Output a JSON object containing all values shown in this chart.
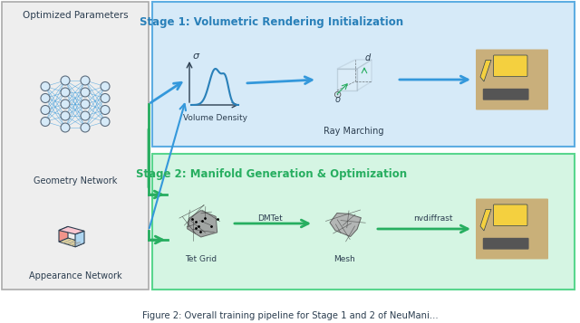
{
  "title": "Figure 2: Overall training pipeline for Stage 1 and 2 of NeuMani...",
  "bg_color": "#ffffff",
  "left_panel_bg": "#eeeeee",
  "stage1_bg": "#d6eaf8",
  "stage2_bg": "#d5f5e3",
  "stage1_border": "#5dade2",
  "stage2_border": "#58d68d",
  "stage1_title": "Stage 1: Volumetric Rendering Initialization",
  "stage2_title": "Stage 2: Manifold Generation & Optimization",
  "stage1_title_color": "#2980b9",
  "stage2_title_color": "#27ae60",
  "arrow_color_blue": "#3498db",
  "arrow_color_green": "#27ae60",
  "left_title": "Optimized Parameters",
  "geo_net_label": "Geometry Network",
  "app_net_label": "Appearance Network",
  "vol_density_label": "Volume Density",
  "ray_marching_label": "Ray Marching",
  "tet_grid_label": "Tet Grid",
  "dmtet_label": "DMTet",
  "mesh_label": "Mesh",
  "nvdiffrast_label": "nvdiffrast",
  "sigma_label": "σ",
  "d_label": "d",
  "o_label": "o",
  "node_color": "#aab8c2",
  "node_edge_color": "#5d6d7e",
  "network_line_color": "#3498db",
  "cube_edge_color": "#2c3e50",
  "density_curve_color": "#2980b9",
  "fig_caption_color": "#2c3e50"
}
